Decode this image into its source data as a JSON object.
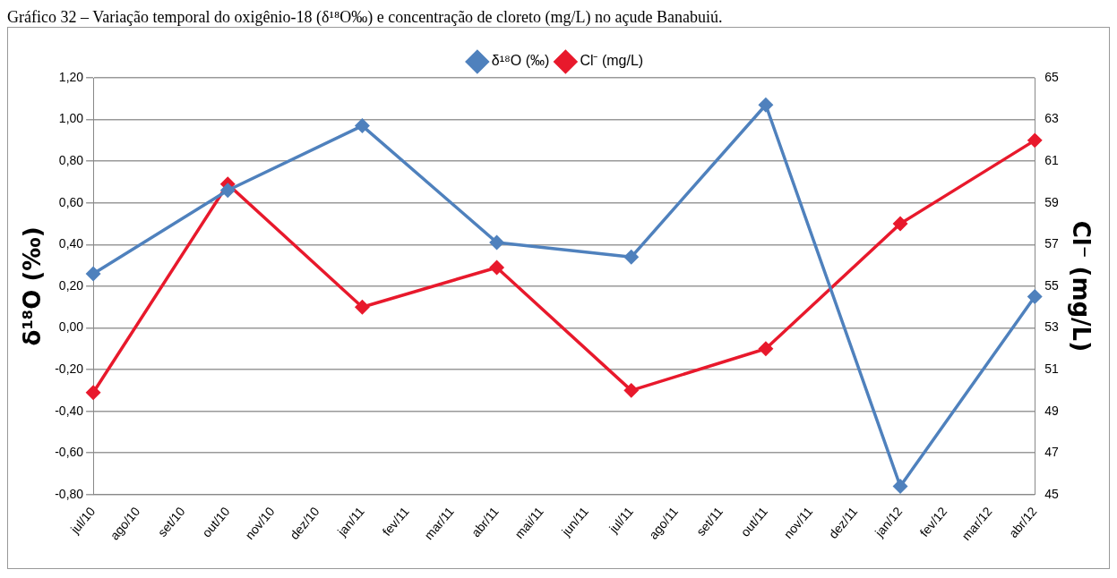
{
  "chart_data": {
    "type": "line",
    "title": "Gráfico 32 – Variação temporal do oxigênio-18 (δ¹⁸O‰) e concentração de cloreto (mg/L) no açude Banabuiú.",
    "ylabel": "δ¹⁸O (‰)",
    "y2label": "Cl⁻ (mg/L)",
    "categories": [
      "jul/10",
      "ago/10",
      "set/10",
      "out/10",
      "nov/10",
      "dez/10",
      "jan/11",
      "fev/11",
      "mar/11",
      "abr/11",
      "mai/11",
      "jun/11",
      "jul/11",
      "ago/11",
      "set/11",
      "out/11",
      "nov/11",
      "dez/11",
      "jan/12",
      "fev/12",
      "mar/12",
      "abr/12"
    ],
    "series": [
      {
        "name": "δ¹⁸O (‰)",
        "color": "#4f81bd",
        "values": [
          0.26,
          null,
          null,
          0.66,
          null,
          null,
          0.97,
          null,
          null,
          0.41,
          null,
          null,
          0.34,
          null,
          null,
          1.07,
          null,
          null,
          -0.76,
          null,
          null,
          0.15
        ]
      },
      {
        "name": "Cl⁻ (mg/L)",
        "color": "#e8192c",
        "axis": "y2",
        "values": [
          49.9,
          null,
          null,
          59.9,
          null,
          null,
          54.0,
          null,
          null,
          55.9,
          null,
          null,
          50.0,
          null,
          null,
          52.0,
          null,
          null,
          58.0,
          null,
          null,
          62.0
        ]
      }
    ],
    "ylim": [
      -0.8,
      1.2
    ],
    "yticks": [
      {
        "value": -0.8,
        "label": "-0,80"
      },
      {
        "value": -0.6,
        "label": "-0,60"
      },
      {
        "value": -0.4,
        "label": "-0,40"
      },
      {
        "value": -0.2,
        "label": "-0,20"
      },
      {
        "value": 0,
        "label": "0,00"
      },
      {
        "value": 0.2,
        "label": "0,20"
      },
      {
        "value": 0.4,
        "label": "0,40"
      },
      {
        "value": 0.6,
        "label": "0,60"
      },
      {
        "value": 0.8,
        "label": "0,80"
      },
      {
        "value": 1.0,
        "label": "1,00"
      },
      {
        "value": 1.2,
        "label": "1,20"
      }
    ],
    "y2lim": [
      45,
      65
    ],
    "y2ticks": [
      45,
      47,
      49,
      51,
      53,
      55,
      57,
      59,
      61,
      63,
      65
    ],
    "grid": "y",
    "legend": "top",
    "marker": "diamond",
    "line_style": "solid"
  }
}
